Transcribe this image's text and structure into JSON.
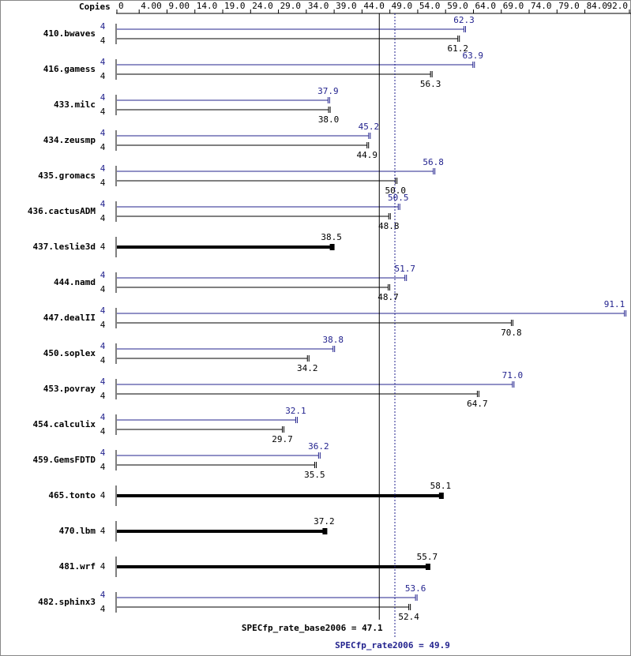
{
  "chart_data": {
    "type": "bar",
    "orientation": "horizontal",
    "copies_header": "Copies",
    "categories": [
      "410.bwaves",
      "416.gamess",
      "433.milc",
      "434.zeusmp",
      "435.gromacs",
      "436.cactusADM",
      "437.leslie3d",
      "444.namd",
      "447.dealII",
      "450.soplex",
      "453.povray",
      "454.calculix",
      "459.GemsFDTD",
      "465.tonto",
      "470.lbm",
      "481.wrf",
      "482.sphinx3"
    ],
    "xlim": [
      0,
      92
    ],
    "xticks": [
      0,
      {
        "value": 4,
        "label": "4.00"
      },
      {
        "value": 9,
        "label": "9.00"
      },
      {
        "value": 14,
        "label": "14.0"
      },
      {
        "value": 19,
        "label": "19.0"
      },
      {
        "value": 24,
        "label": "24.0"
      },
      {
        "value": 29,
        "label": "29.0"
      },
      {
        "value": 34,
        "label": "34.0"
      },
      {
        "value": 39,
        "label": "39.0"
      },
      {
        "value": 44,
        "label": "44.0"
      },
      {
        "value": 49,
        "label": "49.0"
      },
      {
        "value": 54,
        "label": "54.0"
      },
      {
        "value": 59,
        "label": "59.0"
      },
      {
        "value": 64,
        "label": "64.0"
      },
      {
        "value": 69,
        "label": "69.0"
      },
      {
        "value": 74,
        "label": "74.0"
      },
      {
        "value": 79,
        "label": "79.0"
      },
      {
        "value": 84,
        "label": "84.0"
      },
      {
        "value": 92,
        "label": "92.0"
      }
    ],
    "series": [
      {
        "color": "#000000",
        "copies": [
          4,
          4,
          4,
          4,
          4,
          4,
          4,
          4,
          4,
          4,
          4,
          4,
          4,
          4,
          4,
          4,
          4
        ],
        "values": [
          61.2,
          56.3,
          38.0,
          44.9,
          50.0,
          48.8,
          38.5,
          48.7,
          70.8,
          34.2,
          64.7,
          29.7,
          35.5,
          58.1,
          37.2,
          55.7,
          52.4
        ],
        "value_labels": [
          "61.2",
          "56.3",
          "38.0",
          "44.9",
          "50.0",
          "48.8",
          "38.5",
          "48.7",
          "70.8",
          "34.2",
          "64.7",
          "29.7",
          "35.5",
          "58.1",
          "37.2",
          "55.7",
          "52.4"
        ],
        "mean": {
          "value": 47.1,
          "label": "SPECfp_rate_base2006 = 47.1"
        }
      },
      {
        "color": "#23238e",
        "copies": [
          4,
          4,
          4,
          4,
          4,
          4,
          null,
          4,
          4,
          4,
          4,
          4,
          4,
          null,
          null,
          null,
          4
        ],
        "values": [
          62.3,
          63.9,
          37.9,
          45.2,
          56.8,
          50.5,
          null,
          51.7,
          91.1,
          38.8,
          71.0,
          32.1,
          36.2,
          null,
          null,
          null,
          53.6
        ],
        "value_labels": [
          "62.3",
          "63.9",
          "37.9",
          "45.2",
          "56.8",
          "50.5",
          null,
          "51.7",
          "91.1",
          "38.8",
          "71.0",
          "32.1",
          "36.2",
          null,
          null,
          null,
          "53.6"
        ],
        "mean": {
          "value": 49.9,
          "label": "SPECfp_rate2006 = 49.9"
        }
      }
    ]
  }
}
